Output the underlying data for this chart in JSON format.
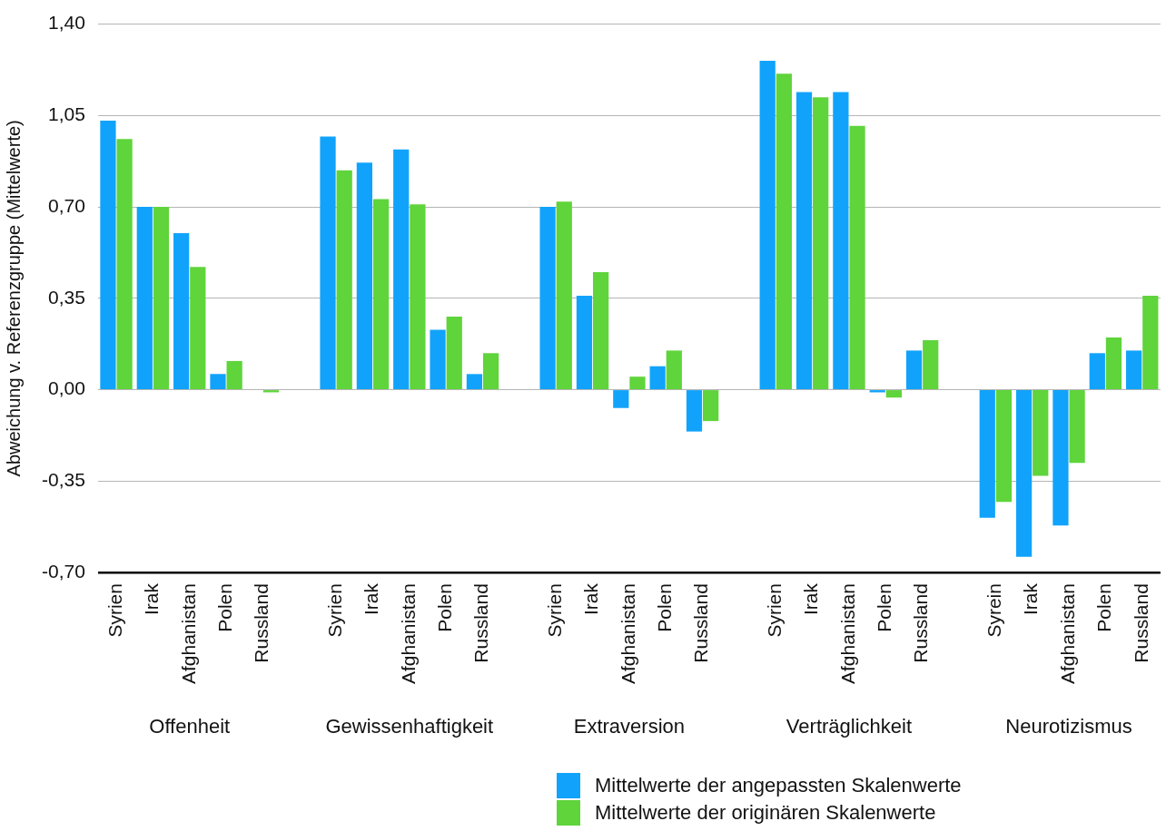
{
  "chart_data": {
    "type": "bar",
    "ylabel": "Abweichung v. Referenzgruppe (Mittelwerte)",
    "categories": [
      "Syrien",
      "Irak",
      "Afghanistan",
      "Polen",
      "Russland",
      null,
      "Syrien",
      "Irak",
      "Afghanistan",
      "Polen",
      "Russland",
      null,
      "Syrien",
      "Irak",
      "Afghanistan",
      "Polen",
      "Russland",
      null,
      "Syrien",
      "Irak",
      "Afghanistan",
      "Polen",
      "Russland",
      null,
      "Syrein",
      "Irak",
      "Afghanistan",
      "Polen",
      "Russland"
    ],
    "series": [
      {
        "name": "Mittelwerte der angepassten Skalenwerte",
        "color": "#11a3fb",
        "values": [
          1.03,
          0.7,
          0.6,
          0.06,
          null,
          null,
          0.97,
          0.87,
          0.92,
          0.23,
          0.06,
          null,
          0.7,
          0.36,
          -0.07,
          0.09,
          -0.16,
          null,
          1.26,
          1.14,
          1.14,
          -0.01,
          0.15,
          null,
          -0.49,
          -0.64,
          -0.52,
          0.14,
          0.15
        ]
      },
      {
        "name": "Mittelwerte der originären Skalenwerte",
        "color": "#5fd43b",
        "values": [
          0.96,
          0.7,
          0.47,
          0.11,
          -0.01,
          null,
          0.84,
          0.73,
          0.71,
          0.28,
          0.14,
          null,
          0.72,
          0.45,
          0.05,
          0.15,
          -0.12,
          null,
          1.21,
          1.12,
          1.01,
          -0.03,
          0.19,
          null,
          -0.43,
          -0.33,
          -0.28,
          0.2,
          0.36
        ]
      }
    ],
    "ylim": [
      -0.7,
      1.4
    ],
    "yticks": [
      {
        "value": -0.7,
        "label": "-0,70"
      },
      {
        "value": -0.35,
        "label": "-0,35"
      },
      {
        "value": 0,
        "label": "0,00"
      },
      {
        "value": 0.35,
        "label": "0,35"
      },
      {
        "value": 0.7,
        "label": "0,70"
      },
      {
        "value": 1.05,
        "label": "1,05"
      },
      {
        "value": 1.4,
        "label": "1,40"
      }
    ],
    "grid": "y",
    "legend": "bottom right",
    "annotations": [
      "Offenheit",
      "Gewissenhaftigkeit",
      "Extraversion",
      "Verträglichkeit",
      "Neurotizismus"
    ]
  }
}
